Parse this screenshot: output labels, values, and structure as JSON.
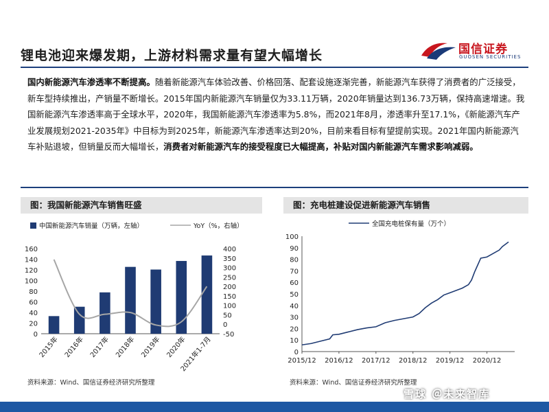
{
  "header": {
    "title": "锂电池迎来爆发期，上游材料需求量有望大幅增长",
    "logo_cn": "国信证券",
    "logo_en": "GUOSEN SECURITIES",
    "logo_icon": "guosen-logo-icon"
  },
  "paragraph": {
    "lead": "国内新能源汽车渗透率不断提高。",
    "body": "随着新能源汽车体验改善、价格回落、配套设施逐渐完善，新能源汽车获得了消费者的广泛接受，新车型持续推出，产销量不断增长。2015年国内新能源汽车销量仅为33.11万辆，2020年销量达到136.73万辆，保持高速增速。我国新能源汽车渗透率高于全球水平，2020年，我国新能源汽车渗透率为5.8%，而2021年8月，渗透率升至17.1%，《新能源汽车产业发展规划2021-2035年》中目标为到2025年，新能源汽车渗透率达到20%，目前来看目标有望提前实现。2021年国内新能源汽车补贴退坡，但销量反而大幅增长，",
    "emphasis": "消费者对新能源汽车的接受程度已大幅提高，补贴对国内新能源汽车需求影响减弱。"
  },
  "left_panel": {
    "heading": "图：我国新能源汽车销售旺盛",
    "source": "资料来源：Wind、国信证券经济研究所整理"
  },
  "right_panel": {
    "heading": "图：充电桩建设促进新能源汽车销售",
    "source": "资料来源：Wind、国信证券经济研究所整理"
  },
  "watermark": "雪球 ＠未来智库",
  "colors": {
    "bar": "#1f3b73",
    "yoy_line": "#a6a6a6",
    "pile_line": "#1f3b73",
    "rule": "#1c3f7c",
    "bottom_bar": "#1d57a3",
    "logo_red": "#c8161e"
  },
  "chart_data": [
    {
      "type": "bar",
      "categories": [
        "2015年",
        "2016年",
        "2017年",
        "2018年",
        "2019年",
        "2020年",
        "2021年1-7月"
      ],
      "series": [
        {
          "name": "中国新能源汽车销量（万辆，左轴）",
          "type": "bar",
          "axis": "left",
          "values": [
            33.11,
            50.7,
            77.7,
            125.6,
            120.6,
            136.73,
            147
          ]
        },
        {
          "name": "YoY（%，右轴）",
          "type": "line",
          "axis": "right",
          "values": [
            342,
            53,
            53,
            62,
            -4,
            13,
            200
          ]
        }
      ],
      "ylim_left": [
        0,
        160
      ],
      "yticks_left": [
        "0",
        "20",
        "40",
        "60",
        "80",
        "100",
        "120",
        "140",
        "160"
      ],
      "ylim_right": [
        -50,
        400
      ],
      "yticks_right": [
        "-50",
        "0",
        "50",
        "100",
        "150",
        "200",
        "250",
        "300",
        "350",
        "400"
      ],
      "legend_position": "top",
      "grid": false
    },
    {
      "type": "line",
      "series": [
        {
          "name": "全国充电桩保有量（万个）",
          "points": [
            [
              "2015-12",
              5.8
            ],
            [
              "2016-03",
              7.0
            ],
            [
              "2016-06",
              9.0
            ],
            [
              "2016-09",
              11.0
            ],
            [
              "2016-10",
              14.5
            ],
            [
              "2016-12",
              15.0
            ],
            [
              "2017-03",
              17.0
            ],
            [
              "2017-06",
              19.0
            ],
            [
              "2017-09",
              20.5
            ],
            [
              "2017-12",
              21.5
            ],
            [
              "2018-03",
              25.0
            ],
            [
              "2018-06",
              27.0
            ],
            [
              "2018-09",
              28.5
            ],
            [
              "2018-12",
              30.0
            ],
            [
              "2019-02",
              33.0
            ],
            [
              "2019-04",
              38.0
            ],
            [
              "2019-06",
              42.0
            ],
            [
              "2019-08",
              45.0
            ],
            [
              "2019-10",
              49.0
            ],
            [
              "2019-12",
              51.0
            ],
            [
              "2020-02",
              53.0
            ],
            [
              "2020-04",
              55.0
            ],
            [
              "2020-06",
              58.0
            ],
            [
              "2020-07",
              62.0
            ],
            [
              "2020-08",
              69.0
            ],
            [
              "2020-09",
              75.0
            ],
            [
              "2020-10",
              81.0
            ],
            [
              "2020-12",
              82.0
            ],
            [
              "2021-02",
              85.0
            ],
            [
              "2021-04",
              88.0
            ],
            [
              "2021-05",
              91.0
            ],
            [
              "2021-07",
              95.0
            ]
          ]
        }
      ],
      "x_ticks": [
        "2015/12",
        "2016/12",
        "2017/12",
        "2018/12",
        "2019/12",
        "2020/12"
      ],
      "ylim": [
        0,
        100
      ],
      "yticks": [
        "0",
        "10",
        "20",
        "30",
        "40",
        "50",
        "60",
        "70",
        "80",
        "90",
        "100"
      ],
      "legend_position": "top-left",
      "grid": false
    }
  ]
}
